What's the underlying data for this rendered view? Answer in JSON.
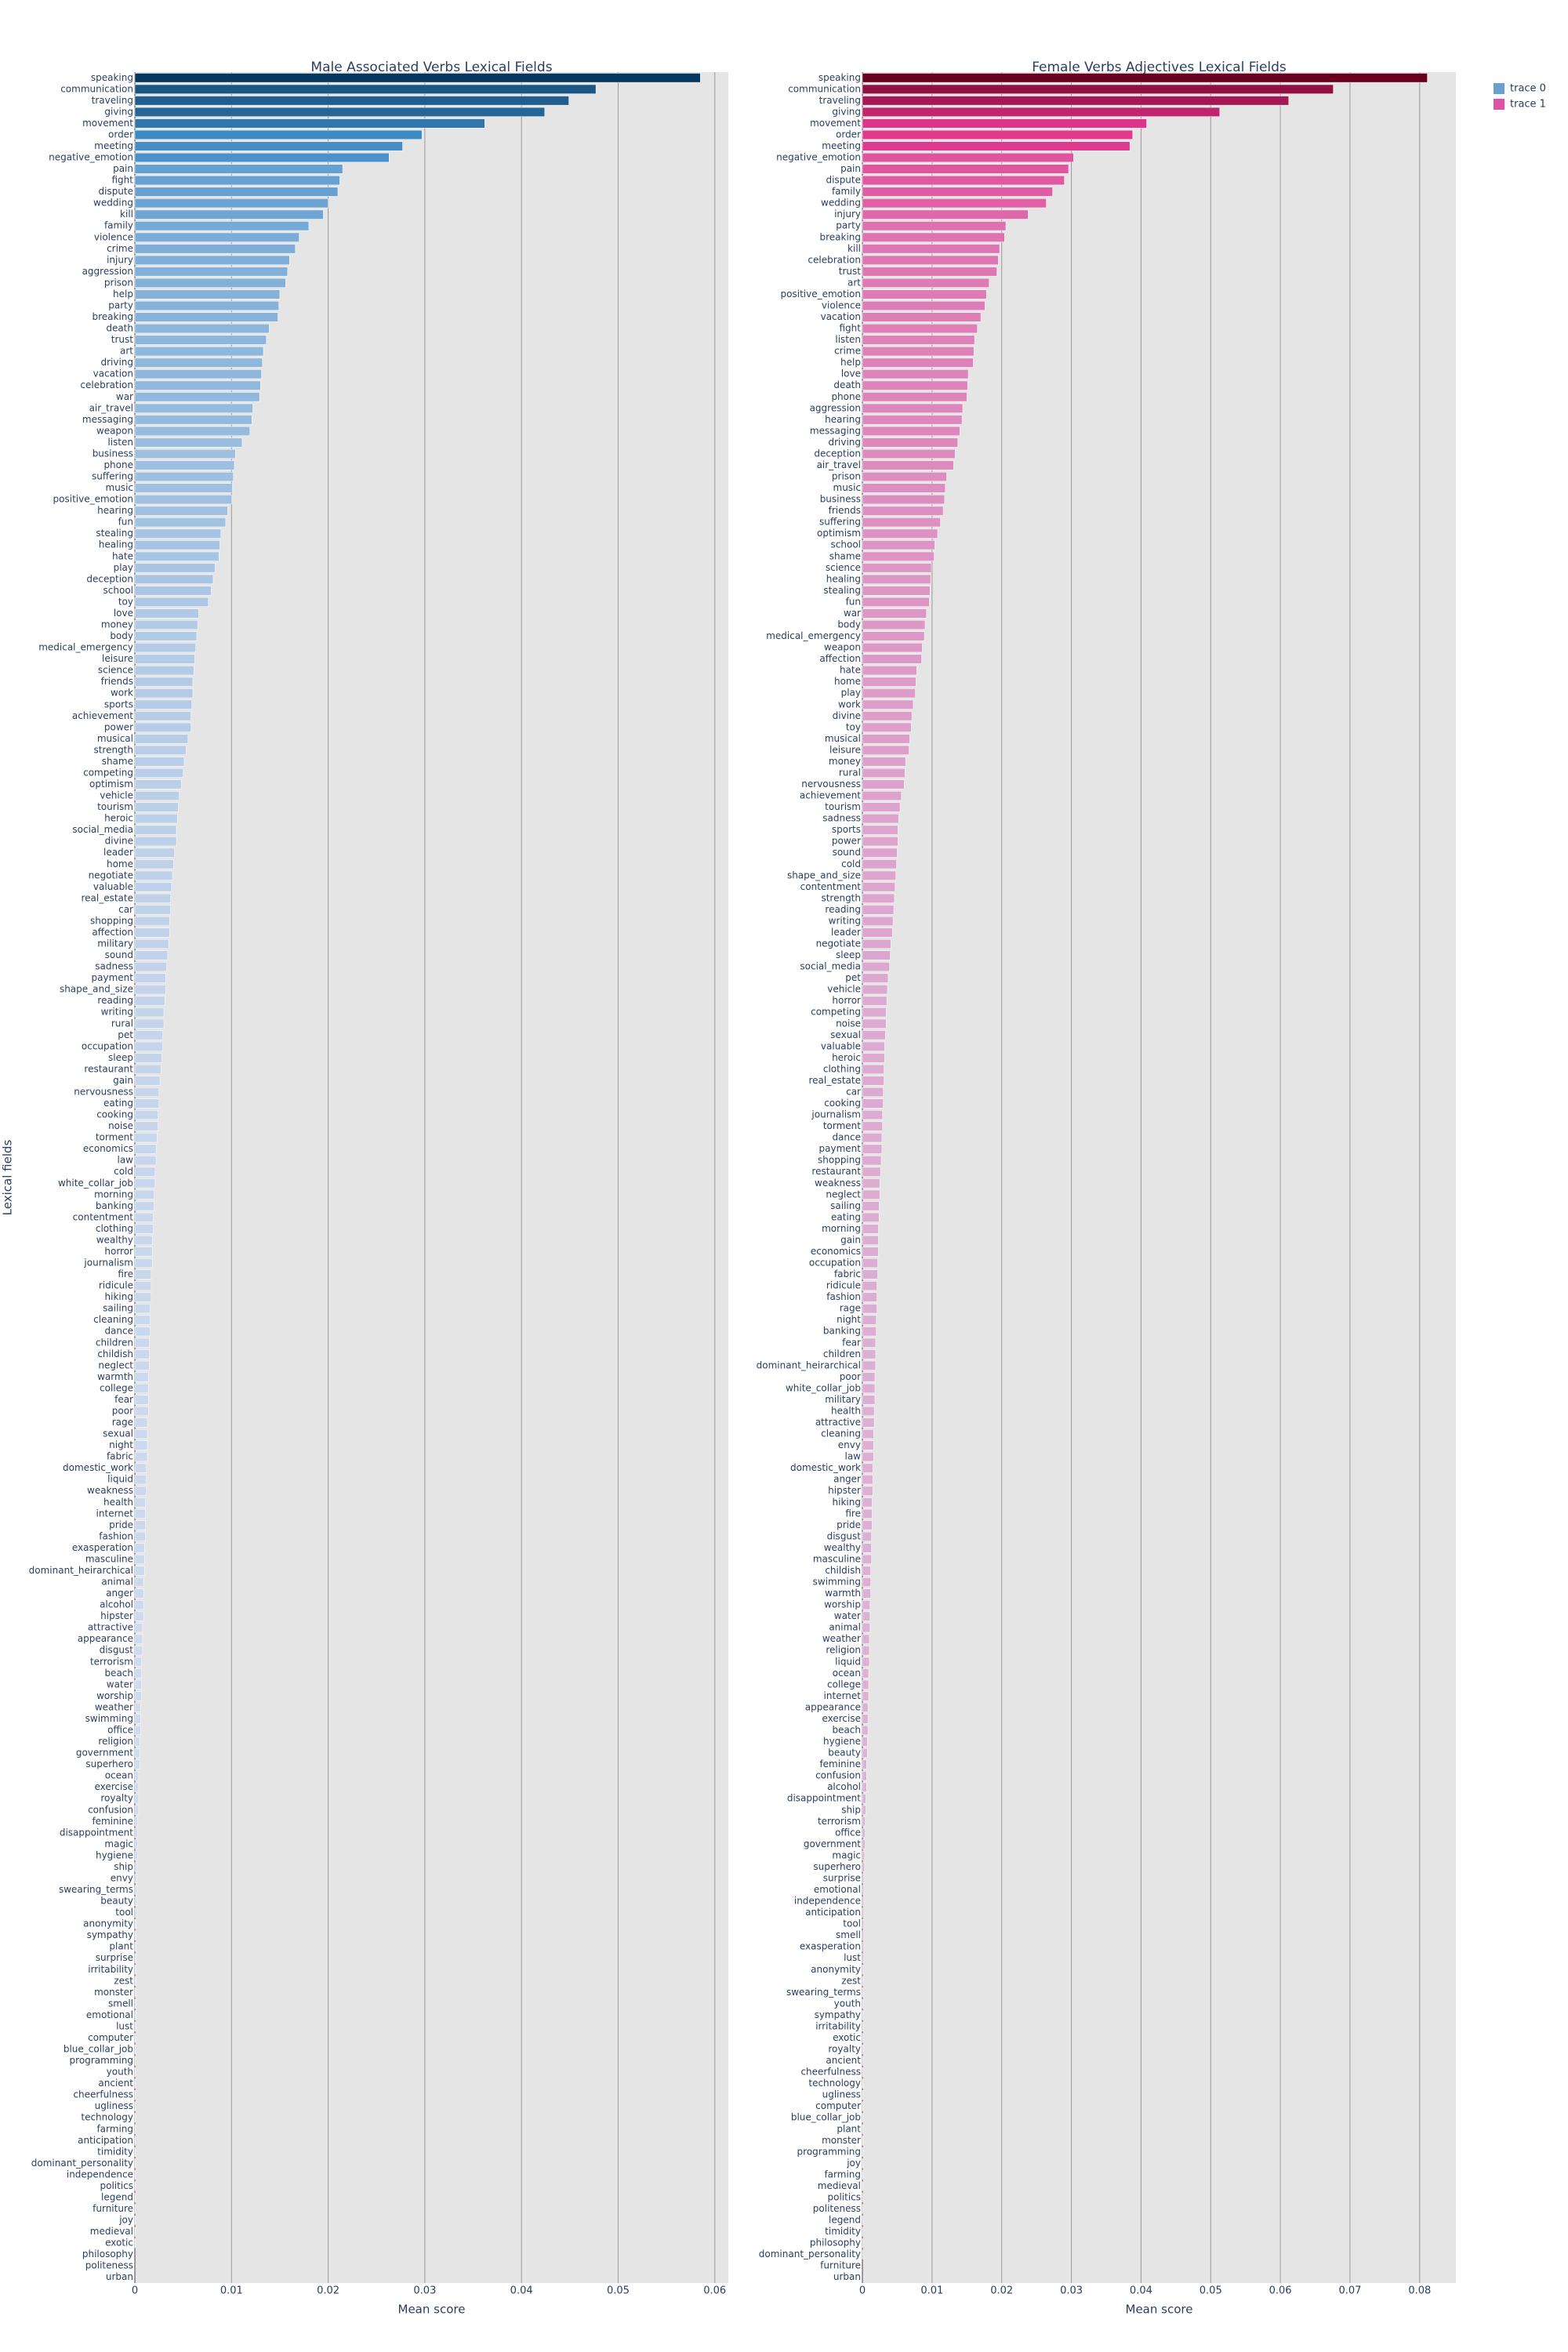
{
  "chart_data": [
    {
      "type": "bar",
      "orientation": "horizontal",
      "title": "Male Associated Verbs Lexical Fields",
      "x_label": "Mean score",
      "y_label": "Lexical fields",
      "categories": [
        "speaking",
        "communication",
        "traveling",
        "giving",
        "movement",
        "order",
        "meeting",
        "negative_emotion",
        "pain",
        "fight",
        "dispute",
        "wedding",
        "kill",
        "family",
        "violence",
        "crime",
        "injury",
        "aggression",
        "prison",
        "help",
        "party",
        "breaking",
        "death",
        "trust",
        "art",
        "driving",
        "vacation",
        "celebration",
        "war",
        "air_travel",
        "messaging",
        "weapon",
        "listen",
        "business",
        "phone",
        "suffering",
        "music",
        "positive_emotion",
        "hearing",
        "fun",
        "stealing",
        "healing",
        "hate",
        "play",
        "deception",
        "school",
        "toy",
        "love",
        "money",
        "body",
        "medical_emergency",
        "leisure",
        "science",
        "friends",
        "work",
        "sports",
        "achievement",
        "power",
        "musical",
        "strength",
        "shame",
        "competing",
        "optimism",
        "vehicle",
        "tourism",
        "heroic",
        "social_media",
        "divine",
        "leader",
        "home",
        "negotiate",
        "valuable",
        "real_estate",
        "car",
        "shopping",
        "affection",
        "military",
        "sound",
        "sadness",
        "payment",
        "shape_and_size",
        "reading",
        "writing",
        "rural",
        "pet",
        "occupation",
        "sleep",
        "restaurant",
        "gain",
        "nervousness",
        "eating",
        "cooking",
        "noise",
        "torment",
        "economics",
        "law",
        "cold",
        "white_collar_job",
        "morning",
        "banking",
        "contentment",
        "clothing",
        "wealthy",
        "horror",
        "journalism",
        "fire",
        "ridicule",
        "hiking",
        "sailing",
        "cleaning",
        "dance",
        "children",
        "childish",
        "neglect",
        "warmth",
        "college",
        "fear",
        "poor",
        "rage",
        "sexual",
        "night",
        "fabric",
        "domestic_work",
        "liquid",
        "weakness",
        "health",
        "internet",
        "pride",
        "fashion",
        "exasperation",
        "masculine",
        "dominant_heirarchical",
        "animal",
        "anger",
        "alcohol",
        "hipster",
        "attractive",
        "appearance",
        "disgust",
        "terrorism",
        "beach",
        "water",
        "worship",
        "weather",
        "swimming",
        "office",
        "religion",
        "government",
        "superhero",
        "ocean",
        "exercise",
        "royalty",
        "confusion",
        "feminine",
        "disappointment",
        "magic",
        "hygiene",
        "ship",
        "envy",
        "swearing_terms",
        "beauty",
        "tool",
        "anonymity",
        "sympathy",
        "plant",
        "surprise",
        "irritability",
        "zest",
        "monster",
        "smell",
        "emotional",
        "lust",
        "computer",
        "blue_collar_job",
        "programming",
        "youth",
        "ancient",
        "cheerfulness",
        "ugliness",
        "technology",
        "farming",
        "anticipation",
        "timidity",
        "dominant_personality",
        "independence",
        "politics",
        "legend",
        "furniture",
        "joy",
        "medieval",
        "exotic",
        "philosophy",
        "politeness",
        "urban"
      ],
      "series": [
        {
          "name": "trace 0",
          "color": "#6a9fd0",
          "values": [
            0.0585,
            0.0477,
            0.0449,
            0.0424,
            0.0362,
            0.0297,
            0.0277,
            0.0263,
            0.0215,
            0.0212,
            0.021,
            0.02,
            0.0195,
            0.018,
            0.017,
            0.0166,
            0.016,
            0.0158,
            0.0156,
            0.015,
            0.0149,
            0.0148,
            0.0139,
            0.0136,
            0.0133,
            0.0132,
            0.0131,
            0.013,
            0.0129,
            0.0122,
            0.0121,
            0.0119,
            0.0111,
            0.0104,
            0.0103,
            0.0102,
            0.0101,
            0.01,
            0.0096,
            0.0094,
            0.0089,
            0.0088,
            0.0087,
            0.0083,
            0.0081,
            0.0079,
            0.0076,
            0.0066,
            0.0065,
            0.0064,
            0.0063,
            0.0062,
            0.0061,
            0.006,
            0.006,
            0.0059,
            0.0058,
            0.0058,
            0.0055,
            0.0053,
            0.0051,
            0.005,
            0.0048,
            0.0046,
            0.0045,
            0.0044,
            0.0043,
            0.0043,
            0.0041,
            0.004,
            0.0039,
            0.0038,
            0.0037,
            0.0037,
            0.0036,
            0.0036,
            0.0035,
            0.0034,
            0.0033,
            0.0032,
            0.0032,
            0.0031,
            0.003,
            0.003,
            0.0029,
            0.0029,
            0.0028,
            0.0027,
            0.0026,
            0.0025,
            0.0025,
            0.0024,
            0.0024,
            0.0023,
            0.0022,
            0.0022,
            0.0021,
            0.0021,
            0.002,
            0.002,
            0.0019,
            0.0019,
            0.0018,
            0.0018,
            0.0018,
            0.0017,
            0.0017,
            0.0017,
            0.0016,
            0.0016,
            0.0016,
            0.0015,
            0.0015,
            0.0015,
            0.0014,
            0.0014,
            0.0014,
            0.0014,
            0.0013,
            0.0013,
            0.0013,
            0.0013,
            0.0012,
            0.0012,
            0.0012,
            0.0011,
            0.0011,
            0.0011,
            0.0011,
            0.001,
            0.001,
            0.001,
            0.0009,
            0.0009,
            0.0009,
            0.0009,
            0.0008,
            0.0008,
            0.0008,
            0.0007,
            0.0007,
            0.0007,
            0.0007,
            0.0006,
            0.0006,
            0.0006,
            0.0005,
            0.0005,
            0.0005,
            0.0004,
            0.0004,
            0.0004,
            0.0004,
            0.0003,
            0.0003,
            0.0003,
            0.0003,
            0.0002,
            0.0002,
            0.0002,
            0.0002,
            0.0002,
            0.0001,
            0.0001,
            0.0001,
            0.0001,
            0.0001,
            0.0001,
            0.0001,
            0.0001,
            0.0001,
            0.0001,
            5e-05,
            5e-05,
            5e-05,
            5e-05,
            5e-05,
            5e-05,
            5e-05,
            5e-05,
            5e-05,
            5e-05,
            5e-05,
            2e-05,
            2e-05,
            2e-05,
            2e-05,
            2e-05,
            2e-05,
            2e-05,
            2e-05,
            0,
            0,
            0
          ]
        }
      ],
      "colorscale": [
        "#d2dcef",
        "#3d8ac6",
        "#08375e"
      ],
      "xlim": [
        0,
        0.0614
      ],
      "xticks": [
        0,
        0.01,
        0.02,
        0.03,
        0.04,
        0.05,
        0.06
      ],
      "grid": true
    },
    {
      "type": "bar",
      "orientation": "horizontal",
      "title": "Female Verbs Adjectives Lexical Fields",
      "x_label": "Mean score",
      "categories": [
        "speaking",
        "communication",
        "traveling",
        "giving",
        "movement",
        "order",
        "meeting",
        "negative_emotion",
        "pain",
        "dispute",
        "family",
        "wedding",
        "injury",
        "party",
        "breaking",
        "kill",
        "celebration",
        "trust",
        "art",
        "positive_emotion",
        "violence",
        "vacation",
        "fight",
        "listen",
        "crime",
        "help",
        "love",
        "death",
        "phone",
        "aggression",
        "hearing",
        "messaging",
        "driving",
        "deception",
        "air_travel",
        "prison",
        "music",
        "business",
        "friends",
        "suffering",
        "optimism",
        "school",
        "shame",
        "science",
        "healing",
        "stealing",
        "fun",
        "war",
        "body",
        "medical_emergency",
        "weapon",
        "affection",
        "hate",
        "home",
        "play",
        "work",
        "divine",
        "toy",
        "musical",
        "leisure",
        "money",
        "rural",
        "nervousness",
        "achievement",
        "tourism",
        "sadness",
        "sports",
        "power",
        "sound",
        "cold",
        "shape_and_size",
        "contentment",
        "strength",
        "reading",
        "writing",
        "leader",
        "negotiate",
        "sleep",
        "social_media",
        "pet",
        "vehicle",
        "horror",
        "competing",
        "noise",
        "sexual",
        "valuable",
        "heroic",
        "clothing",
        "real_estate",
        "car",
        "cooking",
        "journalism",
        "torment",
        "dance",
        "payment",
        "shopping",
        "restaurant",
        "weakness",
        "neglect",
        "sailing",
        "eating",
        "morning",
        "gain",
        "economics",
        "occupation",
        "fabric",
        "ridicule",
        "fashion",
        "rage",
        "night",
        "banking",
        "fear",
        "children",
        "dominant_heirarchical",
        "poor",
        "white_collar_job",
        "military",
        "health",
        "attractive",
        "cleaning",
        "envy",
        "law",
        "domestic_work",
        "anger",
        "hipster",
        "hiking",
        "fire",
        "pride",
        "disgust",
        "wealthy",
        "masculine",
        "childish",
        "swimming",
        "warmth",
        "worship",
        "water",
        "animal",
        "weather",
        "religion",
        "liquid",
        "ocean",
        "college",
        "internet",
        "appearance",
        "exercise",
        "beach",
        "hygiene",
        "beauty",
        "feminine",
        "confusion",
        "alcohol",
        "disappointment",
        "ship",
        "terrorism",
        "office",
        "government",
        "magic",
        "superhero",
        "surprise",
        "emotional",
        "independence",
        "anticipation",
        "tool",
        "smell",
        "exasperation",
        "lust",
        "anonymity",
        "zest",
        "swearing_terms",
        "youth",
        "sympathy",
        "irritability",
        "exotic",
        "royalty",
        "ancient",
        "cheerfulness",
        "technology",
        "ugliness",
        "computer",
        "blue_collar_job",
        "plant",
        "monster",
        "programming",
        "joy",
        "farming",
        "medieval",
        "politics",
        "politeness",
        "legend",
        "timidity",
        "philosophy",
        "dominant_personality",
        "furniture",
        "urban"
      ],
      "series": [
        {
          "name": "trace 1",
          "color": "#e052a6",
          "values": [
            0.0811,
            0.0676,
            0.0612,
            0.0513,
            0.0408,
            0.0388,
            0.0384,
            0.0303,
            0.0296,
            0.029,
            0.0273,
            0.0264,
            0.0238,
            0.0206,
            0.0204,
            0.0197,
            0.0195,
            0.0193,
            0.0182,
            0.0178,
            0.0176,
            0.017,
            0.0165,
            0.0161,
            0.016,
            0.0159,
            0.0152,
            0.0151,
            0.015,
            0.0144,
            0.0143,
            0.014,
            0.0137,
            0.0133,
            0.0131,
            0.0121,
            0.0119,
            0.0118,
            0.0116,
            0.0112,
            0.0108,
            0.0104,
            0.0103,
            0.0099,
            0.0098,
            0.0097,
            0.0096,
            0.0092,
            0.009,
            0.0089,
            0.0086,
            0.0085,
            0.0078,
            0.0077,
            0.0076,
            0.0073,
            0.0071,
            0.007,
            0.0068,
            0.0067,
            0.0062,
            0.0061,
            0.006,
            0.0056,
            0.0054,
            0.0052,
            0.0051,
            0.0051,
            0.005,
            0.0049,
            0.0048,
            0.0047,
            0.0046,
            0.0045,
            0.0044,
            0.0043,
            0.0041,
            0.004,
            0.0039,
            0.0037,
            0.0036,
            0.0035,
            0.0034,
            0.0034,
            0.0033,
            0.0032,
            0.0032,
            0.0031,
            0.0031,
            0.003,
            0.003,
            0.0029,
            0.0029,
            0.0028,
            0.0028,
            0.0027,
            0.0026,
            0.0025,
            0.0025,
            0.0024,
            0.0024,
            0.0023,
            0.0023,
            0.0023,
            0.0022,
            0.0022,
            0.0021,
            0.0021,
            0.0021,
            0.002,
            0.002,
            0.0019,
            0.0019,
            0.0019,
            0.0018,
            0.0018,
            0.0018,
            0.0017,
            0.0017,
            0.0016,
            0.0016,
            0.0016,
            0.0015,
            0.0015,
            0.0015,
            0.0014,
            0.0014,
            0.0014,
            0.0013,
            0.0013,
            0.0013,
            0.0012,
            0.0012,
            0.0012,
            0.0011,
            0.0011,
            0.0011,
            0.001,
            0.001,
            0.001,
            0.0009,
            0.0009,
            0.0009,
            0.0008,
            0.0008,
            0.0008,
            0.0007,
            0.0007,
            0.0006,
            0.0006,
            0.0006,
            0.0005,
            0.0005,
            0.0004,
            0.0004,
            0.0004,
            0.0003,
            0.0003,
            0.0002,
            0.0002,
            0.0002,
            0.0002,
            0.0002,
            0.0002,
            0.0002,
            0.0002,
            0.0001,
            0.0001,
            0.0001,
            0.0001,
            0.0001,
            0.0001,
            0.0001,
            0.0001,
            0.0001,
            0.0001,
            5e-05,
            5e-05,
            5e-05,
            5e-05,
            5e-05,
            5e-05,
            5e-05,
            5e-05,
            5e-05,
            5e-05,
            2e-05,
            2e-05,
            2e-05,
            2e-05,
            2e-05,
            2e-05,
            0,
            0
          ]
        }
      ],
      "colorscale": [
        "#dcb4d6",
        "#e0338b",
        "#6a001f"
      ],
      "xlim": [
        0,
        0.0852
      ],
      "xticks": [
        0,
        0.01,
        0.02,
        0.03,
        0.04,
        0.05,
        0.06,
        0.07,
        0.08
      ],
      "grid": true
    }
  ]
}
